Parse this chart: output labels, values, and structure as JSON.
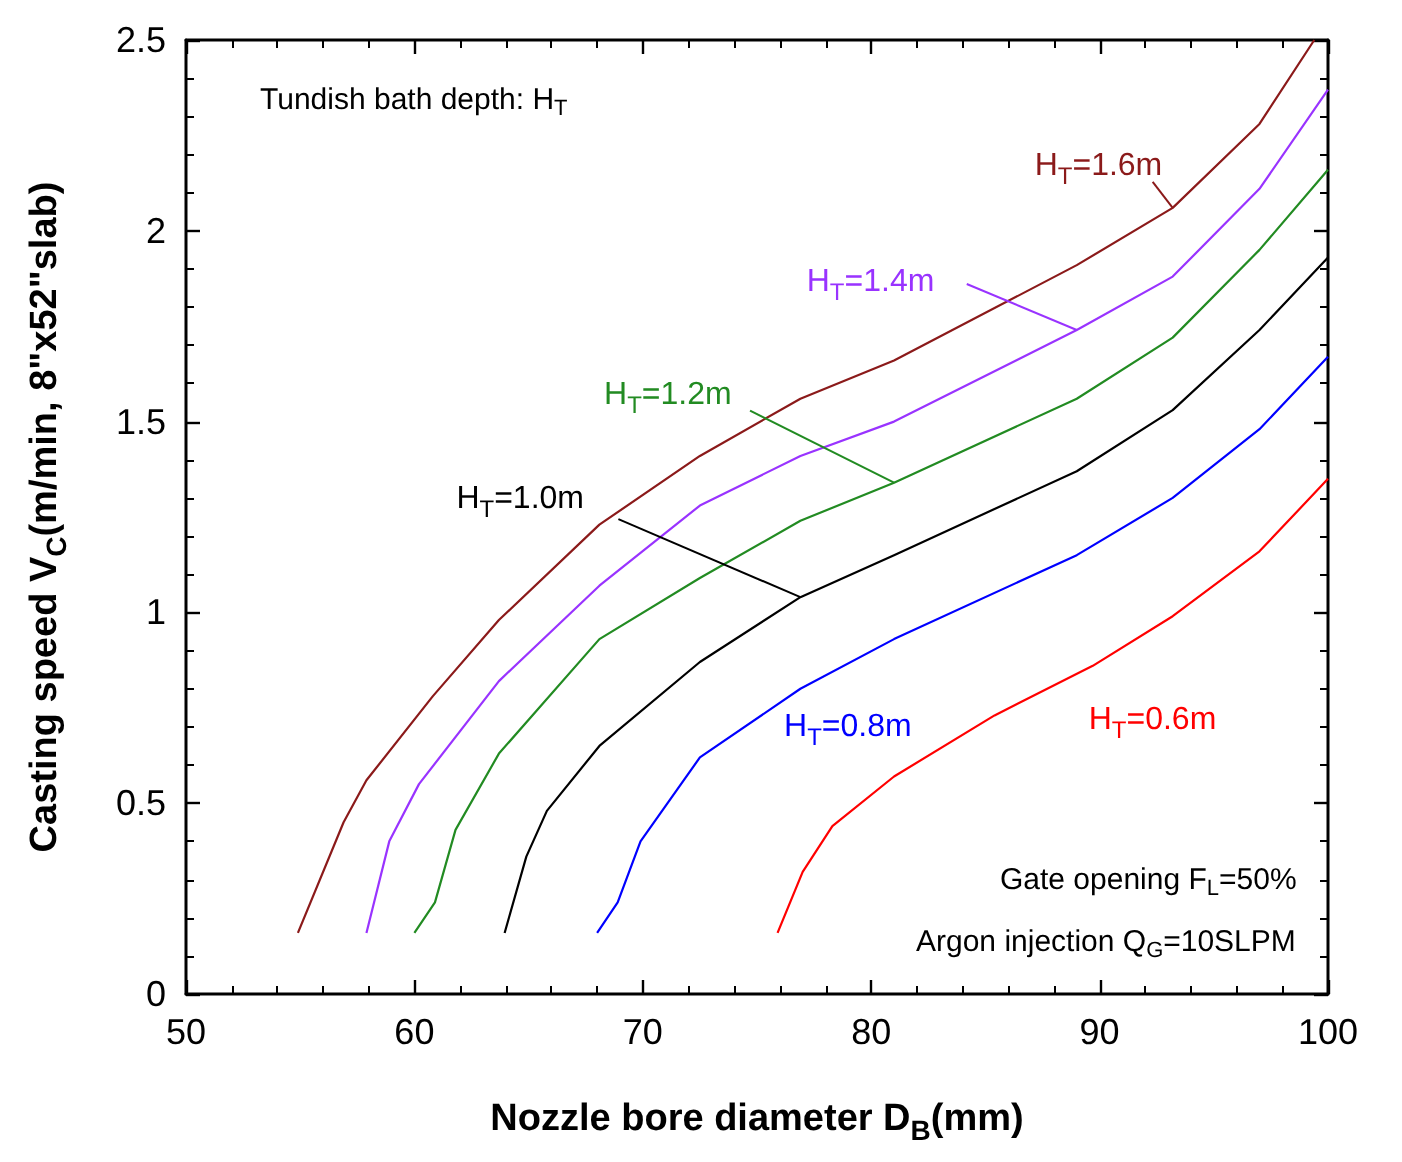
{
  "chart_data": {
    "type": "line",
    "xlabel": "Nozzle bore diameter D$_{B}$(mm)",
    "ylabel": "Casting speed V$_{C}$(m/min, 8\"x52\"slab)",
    "annotations": [
      "Tundish bath depth: H$_{T}$",
      "Gate opening F$_{L}$=50%",
      "Argon injection Q$_{G}$=10SLPM"
    ],
    "xlim": [
      50,
      100
    ],
    "ylim": [
      0,
      2.5
    ],
    "xticks": [
      50,
      60,
      70,
      80,
      90,
      100
    ],
    "yticks": [
      0,
      0.5,
      1,
      1.5,
      2,
      2.5
    ],
    "grid": false,
    "marker": "none",
    "line_style": "solid",
    "series": [
      {
        "name": "H$_{T}$=1.6m",
        "color": "#8b1a1a",
        "x": [
          54.9,
          56.9,
          57.9,
          60.8,
          63.7,
          68.1,
          72.5,
          76.9,
          81.0,
          89.0,
          93.2,
          97.0,
          99.4
        ],
        "values": [
          0.16,
          0.45,
          0.56,
          0.78,
          0.98,
          1.23,
          1.41,
          1.56,
          1.66,
          1.91,
          2.06,
          2.28,
          2.5
        ]
      },
      {
        "name": "H$_{T}$=1.4m",
        "color": "#9933ff",
        "x": [
          57.9,
          58.9,
          60.2,
          63.7,
          68.1,
          72.5,
          76.9,
          81.0,
          89.0,
          93.2,
          97.0,
          100
        ],
        "values": [
          0.16,
          0.4,
          0.55,
          0.82,
          1.07,
          1.28,
          1.41,
          1.5,
          1.74,
          1.88,
          2.11,
          2.37
        ]
      },
      {
        "name": "H$_{T}$=1.2m",
        "color": "#228b22",
        "x": [
          60.0,
          60.9,
          61.8,
          63.7,
          68.1,
          72.5,
          76.9,
          81.0,
          89.0,
          93.2,
          97.0,
          100
        ],
        "values": [
          0.16,
          0.24,
          0.43,
          0.63,
          0.93,
          1.09,
          1.24,
          1.34,
          1.56,
          1.72,
          1.95,
          2.16
        ]
      },
      {
        "name": "H$_{T}$=1.0m",
        "color": "#000000",
        "x": [
          63.95,
          64.9,
          65.8,
          68.1,
          72.5,
          76.9,
          81.0,
          89.0,
          93.2,
          97.0,
          100
        ],
        "values": [
          0.16,
          0.36,
          0.48,
          0.65,
          0.87,
          1.04,
          1.15,
          1.37,
          1.53,
          1.74,
          1.93
        ]
      },
      {
        "name": "H$_{T}$=0.8m",
        "color": "#0000ff",
        "x": [
          68.0,
          68.9,
          69.9,
          72.5,
          76.9,
          81.0,
          89.0,
          93.2,
          97.0,
          100
        ],
        "values": [
          0.16,
          0.24,
          0.4,
          0.62,
          0.8,
          0.93,
          1.15,
          1.3,
          1.48,
          1.67
        ]
      },
      {
        "name": "H$_{T}$=0.6m",
        "color": "#ff0000",
        "x": [
          75.9,
          77.0,
          78.3,
          81.0,
          85.4,
          89.7,
          93.2,
          97.0,
          100
        ],
        "values": [
          0.16,
          0.32,
          0.44,
          0.57,
          0.73,
          0.86,
          0.99,
          1.16,
          1.35
        ]
      }
    ]
  }
}
